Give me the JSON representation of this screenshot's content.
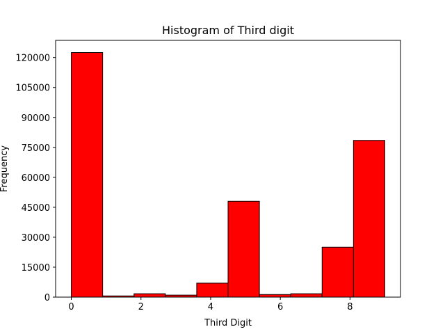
{
  "chart_data": {
    "type": "bar",
    "title": "Histogram of Third digit",
    "xlabel": "Third Digit",
    "ylabel": "Frequency",
    "bin_edges": [
      0,
      0.9,
      1.8,
      2.7,
      3.6,
      4.5,
      5.4,
      6.3,
      7.2,
      8.1,
      9.0
    ],
    "values": [
      122500,
      600,
      1700,
      1000,
      7000,
      48000,
      1300,
      1700,
      25000,
      78500
    ],
    "xlim": [
      -0.45,
      9.45
    ],
    "ylim": [
      0,
      128600
    ],
    "xticks": [
      0,
      2,
      4,
      6,
      8
    ],
    "xtick_labels": [
      "0",
      "2",
      "4",
      "6",
      "8"
    ],
    "yticks": [
      0,
      15000,
      30000,
      45000,
      60000,
      75000,
      90000,
      105000,
      120000
    ],
    "ytick_labels": [
      "0",
      "15000",
      "30000",
      "45000",
      "60000",
      "75000",
      "90000",
      "105000",
      "120000"
    ],
    "grid": false,
    "bar_color": "#ff0000",
    "edge_color": "#000000"
  }
}
